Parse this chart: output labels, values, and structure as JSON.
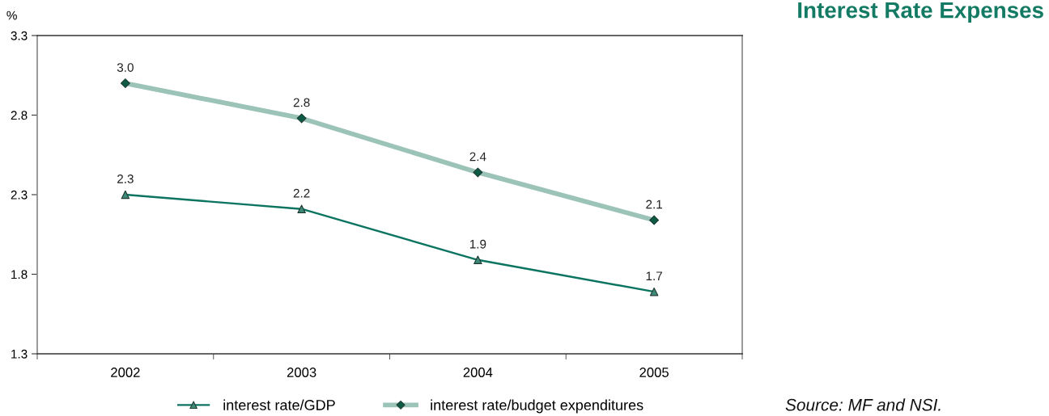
{
  "chart_data": {
    "type": "line",
    "title": "Interest Rate Expenses",
    "ylabel": "%",
    "categories": [
      "2002",
      "2003",
      "2004",
      "2005"
    ],
    "series": [
      {
        "name": "interest rate/GDP",
        "color": "#0b7460",
        "colors": [
          "#3f8a78",
          "#3f8a78",
          "#3f8a78",
          "#3f8a78"
        ],
        "marker": "triangle",
        "values": [
          2.3,
          2.21,
          1.89,
          1.69
        ],
        "value_labels": [
          "2.3",
          "2.2",
          "1.9",
          "1.7"
        ]
      },
      {
        "name": "interest rate/budget expenditures",
        "color": "#9cc3b7",
        "colors": [
          "#0d5a45",
          "#0d5a45",
          "#0d5a45",
          "#0d5a45"
        ],
        "marker": "diamond",
        "values": [
          3.0,
          2.78,
          2.44,
          2.14
        ],
        "value_labels": [
          "3.0",
          "2.8",
          "2.4",
          "2.1"
        ]
      }
    ],
    "ylim": [
      1.3,
      3.3
    ],
    "yticks": [
      1.3,
      1.8,
      2.3,
      2.8,
      3.3
    ],
    "legend": "bottom",
    "annotations": [
      "Source: MF and NSI."
    ]
  }
}
